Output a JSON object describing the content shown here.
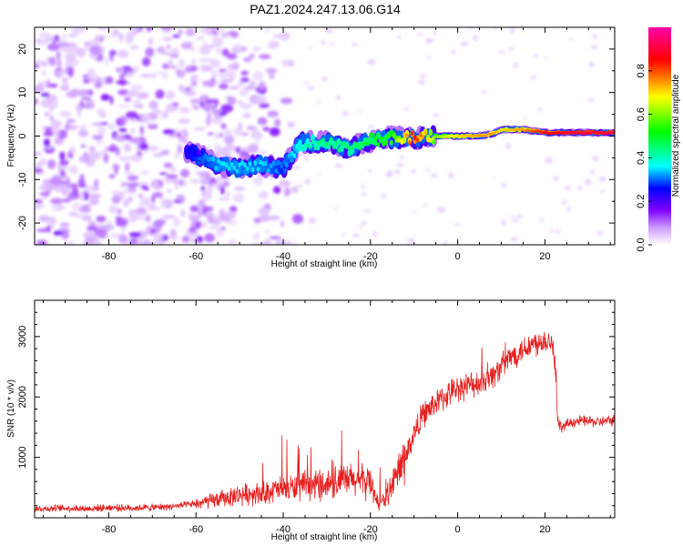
{
  "title": "PAZ1.2024.247.13.06.G14",
  "chart_data": [
    {
      "type": "heatmap",
      "xlabel": "Height of straight line (km)",
      "ylabel": "Frequency (Hz)",
      "xlim": [
        -97,
        36
      ],
      "ylim": [
        -25,
        25
      ],
      "xticks": [
        -80,
        -60,
        -40,
        -20,
        0,
        20
      ],
      "yticks": [
        -20,
        -10,
        0,
        10,
        20
      ],
      "colorbar": {
        "label": "Normalized spectral amplitude",
        "range": [
          0,
          1
        ],
        "ticks": [
          "0.0",
          "0.2",
          "0.4",
          "0.6",
          "0.8"
        ],
        "colors": [
          "#ffffff",
          "#cc99ff",
          "#7f00ff",
          "#0000ff",
          "#00ffff",
          "#00ff00",
          "#ffff00",
          "#ff0000",
          "#ff00aa"
        ]
      },
      "ridge": {
        "x": [
          -62,
          -55,
          -50,
          -45,
          -40,
          -36,
          -30,
          -25,
          -20,
          -15,
          -10,
          -5,
          0,
          5,
          8,
          10,
          15,
          20,
          25,
          30,
          36
        ],
        "freq": [
          -3.5,
          -6.5,
          -7.5,
          -6.5,
          -7.5,
          -1.5,
          -1.5,
          -3.0,
          -1.0,
          -0.5,
          -0.5,
          0.0,
          0.0,
          0.0,
          0.5,
          1.5,
          1.5,
          0.8,
          0.8,
          0.8,
          0.8
        ],
        "amplitude": [
          0.25,
          0.35,
          0.35,
          0.35,
          0.3,
          0.4,
          0.45,
          0.45,
          0.5,
          0.55,
          0.85,
          0.6,
          0.7,
          0.75,
          0.75,
          0.7,
          0.75,
          0.85,
          0.9,
          0.9,
          0.9
        ]
      },
      "noise_region_x": [
        -97,
        -55
      ]
    },
    {
      "type": "line",
      "xlabel": "Height of straight line (km)",
      "ylabel": "SNR (10 * v/v)",
      "xlim": [
        -97,
        36
      ],
      "ylim": [
        0,
        3600
      ],
      "xticks": [
        -80,
        -60,
        -40,
        -20,
        0,
        20
      ],
      "yticks": [
        1000,
        2000,
        3000
      ],
      "color": "#e62020",
      "series": [
        {
          "x": [
            -97,
            -90,
            -85,
            -80,
            -75,
            -70,
            -65,
            -60,
            -55,
            -50,
            -45,
            -40,
            -35,
            -30,
            -25,
            -20,
            -18,
            -16,
            -14,
            -12,
            -10,
            -8,
            -5,
            -2,
            0,
            3,
            5,
            8,
            10,
            12,
            15,
            18,
            20,
            22,
            23,
            24,
            26,
            28,
            30,
            32,
            34,
            36
          ],
          "y": [
            150,
            160,
            150,
            170,
            160,
            170,
            190,
            230,
            300,
            380,
            420,
            480,
            520,
            560,
            620,
            600,
            200,
            400,
            700,
            1000,
            1400,
            1700,
            1900,
            2050,
            2150,
            2200,
            2250,
            2350,
            2500,
            2650,
            2800,
            2900,
            2950,
            2900,
            1550,
            1500,
            1580,
            1600,
            1600,
            1580,
            1600,
            1620
          ]
        }
      ]
    }
  ]
}
